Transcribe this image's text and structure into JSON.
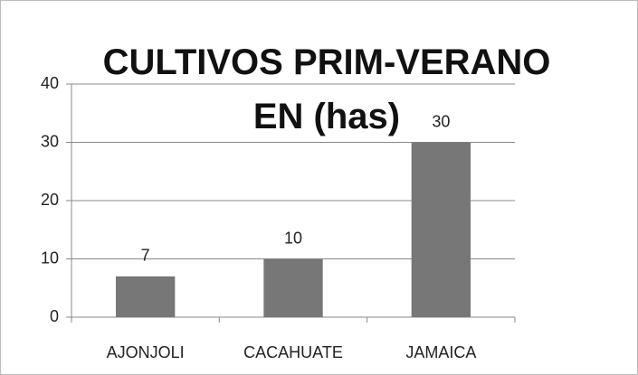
{
  "chart_data": {
    "type": "bar",
    "title": "CULTIVOS PRIM-VERANO EN (has)",
    "categories": [
      "AJONJOLI",
      "CACAHUATE",
      "JAMAICA"
    ],
    "values": [
      7,
      10,
      30
    ],
    "color": "#777777",
    "ylim": [
      0,
      40
    ],
    "yticks": [
      0,
      10,
      20,
      30,
      40
    ],
    "grid": true
  }
}
